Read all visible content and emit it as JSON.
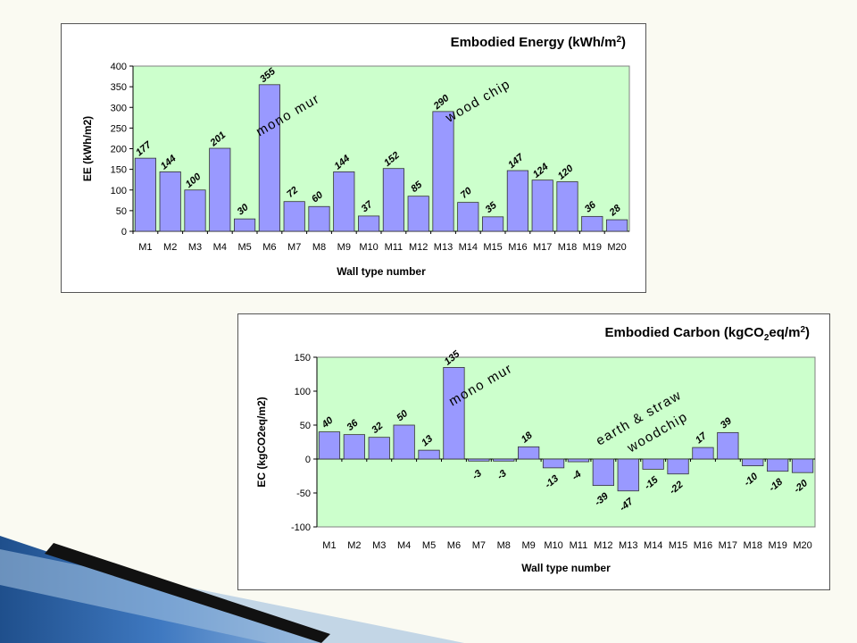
{
  "chart_data": [
    {
      "type": "bar",
      "title": "Embodied Energy (kWh/m",
      "title_sup": "2",
      "title_tail": ")",
      "ylabel": "EE (kWh/m2)",
      "xlabel": "Wall type number",
      "ylim": [
        0,
        400
      ],
      "yticks": [
        0,
        50,
        100,
        150,
        200,
        250,
        300,
        350,
        400
      ],
      "grid": false,
      "plot_bg": "#ccffcc",
      "bar_color": "#9999ff",
      "categories": [
        "M1",
        "M2",
        "M3",
        "M4",
        "M5",
        "M6",
        "M7",
        "M8",
        "M9",
        "M10",
        "M11",
        "M12",
        "M13",
        "M14",
        "M15",
        "M16",
        "M17",
        "M18",
        "M19",
        "M20"
      ],
      "values": [
        177,
        144,
        100,
        201,
        30,
        355,
        72,
        60,
        144,
        37,
        152,
        85,
        290,
        70,
        35,
        147,
        124,
        120,
        36,
        28
      ],
      "annotations": [
        "mono mur",
        "wood chip"
      ]
    },
    {
      "type": "bar",
      "title": "Embodied Carbon (kgCO",
      "title_sub": "2",
      "title_mid": "eq/m",
      "title_sup": "2",
      "title_tail": ")",
      "ylabel": "EC (kgCO2eq/m2)",
      "xlabel": "Wall type number",
      "ylim": [
        -100,
        150
      ],
      "yticks": [
        -100,
        -50,
        0,
        50,
        100,
        150
      ],
      "grid": false,
      "plot_bg": "#ccffcc",
      "bar_color": "#9999ff",
      "categories": [
        "M1",
        "M2",
        "M3",
        "M4",
        "M5",
        "M6",
        "M7",
        "M8",
        "M9",
        "M10",
        "M11",
        "M12",
        "M13",
        "M14",
        "M15",
        "M16",
        "M17",
        "M18",
        "M19",
        "M20"
      ],
      "values": [
        40,
        36,
        32,
        50,
        13,
        135,
        -3,
        -3,
        18,
        -13,
        -4,
        -39,
        -47,
        -15,
        -22,
        17,
        39,
        -10,
        -18,
        -20
      ],
      "annotations": [
        "mono mur",
        "earth & straw",
        "woodchip"
      ]
    }
  ]
}
